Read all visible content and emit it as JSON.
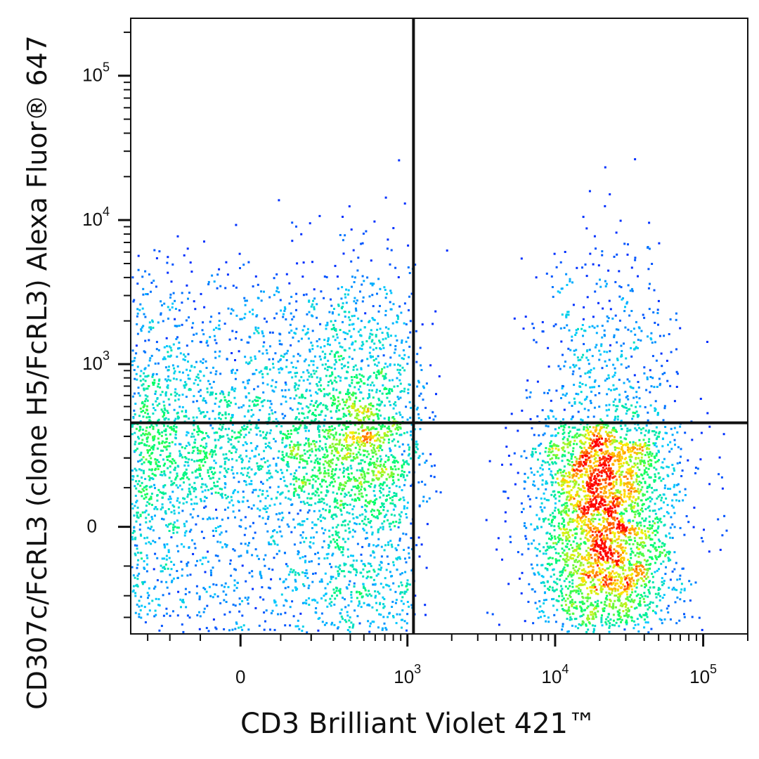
{
  "chart_data": {
    "type": "scatter",
    "title": "",
    "xlabel": "CD3 Brilliant Violet 421™",
    "ylabel": "CD307c/FcRL3 (clone H5/FcRL3) Alexa Fluor® 647",
    "x_scale": "biexponential",
    "y_scale": "biexponential",
    "x_ticks": [
      {
        "value": 0,
        "label": "0"
      },
      {
        "value": 1000,
        "label": "10",
        "exp": "3"
      },
      {
        "value": 10000,
        "label": "10",
        "exp": "4"
      },
      {
        "value": 100000,
        "label": "10",
        "exp": "5"
      }
    ],
    "y_ticks": [
      {
        "value": 0,
        "label": "0"
      },
      {
        "value": 1000,
        "label": "10",
        "exp": "3"
      },
      {
        "value": 10000,
        "label": "10",
        "exp": "4"
      },
      {
        "value": 100000,
        "label": "10",
        "exp": "5"
      }
    ],
    "xlim": [
      -400,
      200000
    ],
    "ylim": [
      -400,
      250000
    ],
    "gate": {
      "x": 1100,
      "y": 380
    },
    "color_scale": [
      "#0000ff",
      "#00c8ff",
      "#00ff66",
      "#ffee00",
      "#ff0000"
    ],
    "populations": [
      {
        "x_center": 50,
        "x_spread": 500,
        "y_center": 500,
        "y_spread": 1.0,
        "weight": 0.33
      },
      {
        "x_center": 50,
        "x_spread": 500,
        "y_center": 10,
        "y_spread": 220,
        "weight": 0.27
      },
      {
        "x_center": 22000,
        "x_spread": 0.45,
        "y_center": 5,
        "y_spread": 180,
        "weight": 0.34
      },
      {
        "x_center": 22000,
        "x_spread": 0.45,
        "y_center": 900,
        "y_spread": 0.9,
        "weight": 0.06
      }
    ]
  }
}
